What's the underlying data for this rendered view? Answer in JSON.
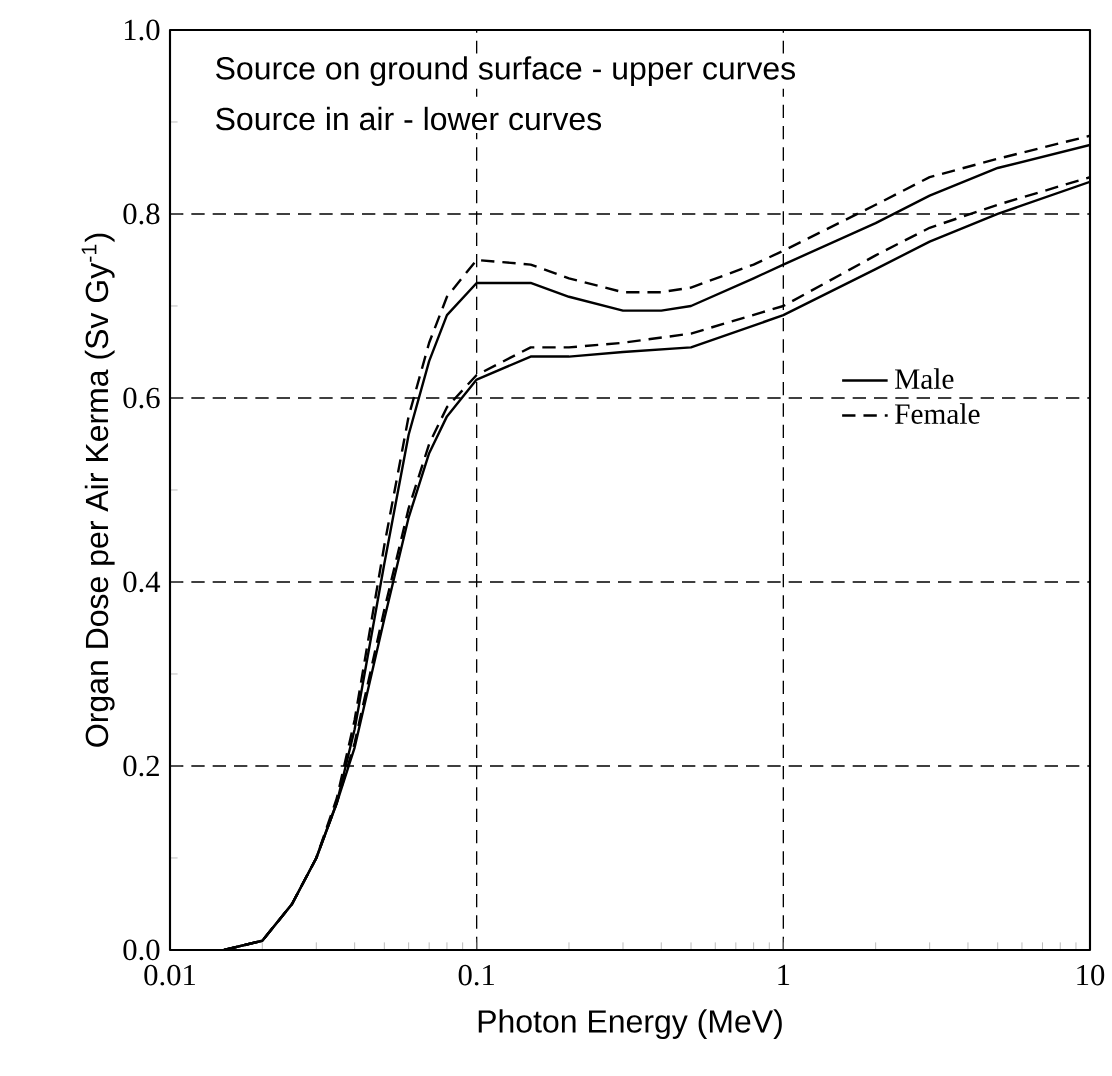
{
  "chart_data": {
    "type": "line",
    "xlabel": "Photon Energy (MeV)",
    "ylabel": "Organ Dose per Air Kerma (Sv Gy$^{-1}$)",
    "annotations": [
      "Source on ground surface - upper curves",
      "Source in air - lower curves"
    ],
    "log": "x",
    "grid": true,
    "legend": "right",
    "xlim": [
      0.01,
      10
    ],
    "xticks": [
      0.01,
      0.1,
      1,
      10
    ],
    "ylim": [
      0,
      1
    ],
    "yticks": [
      {
        "value": 0,
        "label": "0.0"
      },
      {
        "value": 0.2,
        "label": "0.2"
      },
      {
        "value": 0.4,
        "label": "0.4"
      },
      {
        "value": 0.6,
        "label": "0.6"
      },
      {
        "value": 0.8,
        "label": "0.8"
      },
      {
        "value": 1,
        "label": "1.0"
      }
    ],
    "series": [
      {
        "name": "Male",
        "color": "#000000",
        "line_style": "solid",
        "x": [
          0.015,
          0.02,
          0.025,
          0.03,
          0.035,
          0.04,
          0.05,
          0.06,
          0.07,
          0.08,
          0.1,
          0.15,
          0.2,
          0.3,
          0.4,
          0.5,
          0.8,
          1,
          2,
          3,
          5,
          10
        ],
        "values": [
          0,
          0.01,
          0.05,
          0.1,
          0.16,
          0.24,
          0.42,
          0.56,
          0.64,
          0.69,
          0.725,
          0.725,
          0.71,
          0.695,
          0.695,
          0.7,
          0.73,
          0.745,
          0.79,
          0.82,
          0.85,
          0.875
        ]
      },
      {
        "name": "Female",
        "color": "#000000",
        "line_style": "dashed",
        "x": [
          0.015,
          0.02,
          0.025,
          0.03,
          0.035,
          0.04,
          0.05,
          0.06,
          0.07,
          0.08,
          0.1,
          0.15,
          0.2,
          0.3,
          0.4,
          0.5,
          0.8,
          1,
          2,
          3,
          5,
          10
        ],
        "values": [
          0,
          0.01,
          0.05,
          0.1,
          0.165,
          0.25,
          0.44,
          0.58,
          0.66,
          0.71,
          0.75,
          0.745,
          0.73,
          0.715,
          0.715,
          0.72,
          0.745,
          0.76,
          0.81,
          0.84,
          0.86,
          0.885
        ]
      },
      {
        "color": "#000000",
        "line_style": "solid",
        "x": [
          0.015,
          0.02,
          0.025,
          0.03,
          0.035,
          0.04,
          0.05,
          0.06,
          0.07,
          0.08,
          0.1,
          0.15,
          0.2,
          0.3,
          0.5,
          1,
          2,
          3,
          5,
          10
        ],
        "values": [
          0,
          0.01,
          0.05,
          0.1,
          0.16,
          0.22,
          0.36,
          0.47,
          0.54,
          0.58,
          0.62,
          0.645,
          0.645,
          0.65,
          0.655,
          0.69,
          0.74,
          0.77,
          0.8,
          0.835
        ]
      },
      {
        "color": "#000000",
        "line_style": "dashed",
        "x": [
          0.015,
          0.02,
          0.025,
          0.03,
          0.035,
          0.04,
          0.05,
          0.06,
          0.07,
          0.08,
          0.1,
          0.15,
          0.2,
          0.3,
          0.5,
          1,
          2,
          3,
          5,
          10
        ],
        "values": [
          0,
          0.01,
          0.05,
          0.1,
          0.16,
          0.225,
          0.37,
          0.48,
          0.55,
          0.59,
          0.625,
          0.655,
          0.655,
          0.66,
          0.67,
          0.7,
          0.755,
          0.785,
          0.81,
          0.84
        ]
      }
    ]
  }
}
